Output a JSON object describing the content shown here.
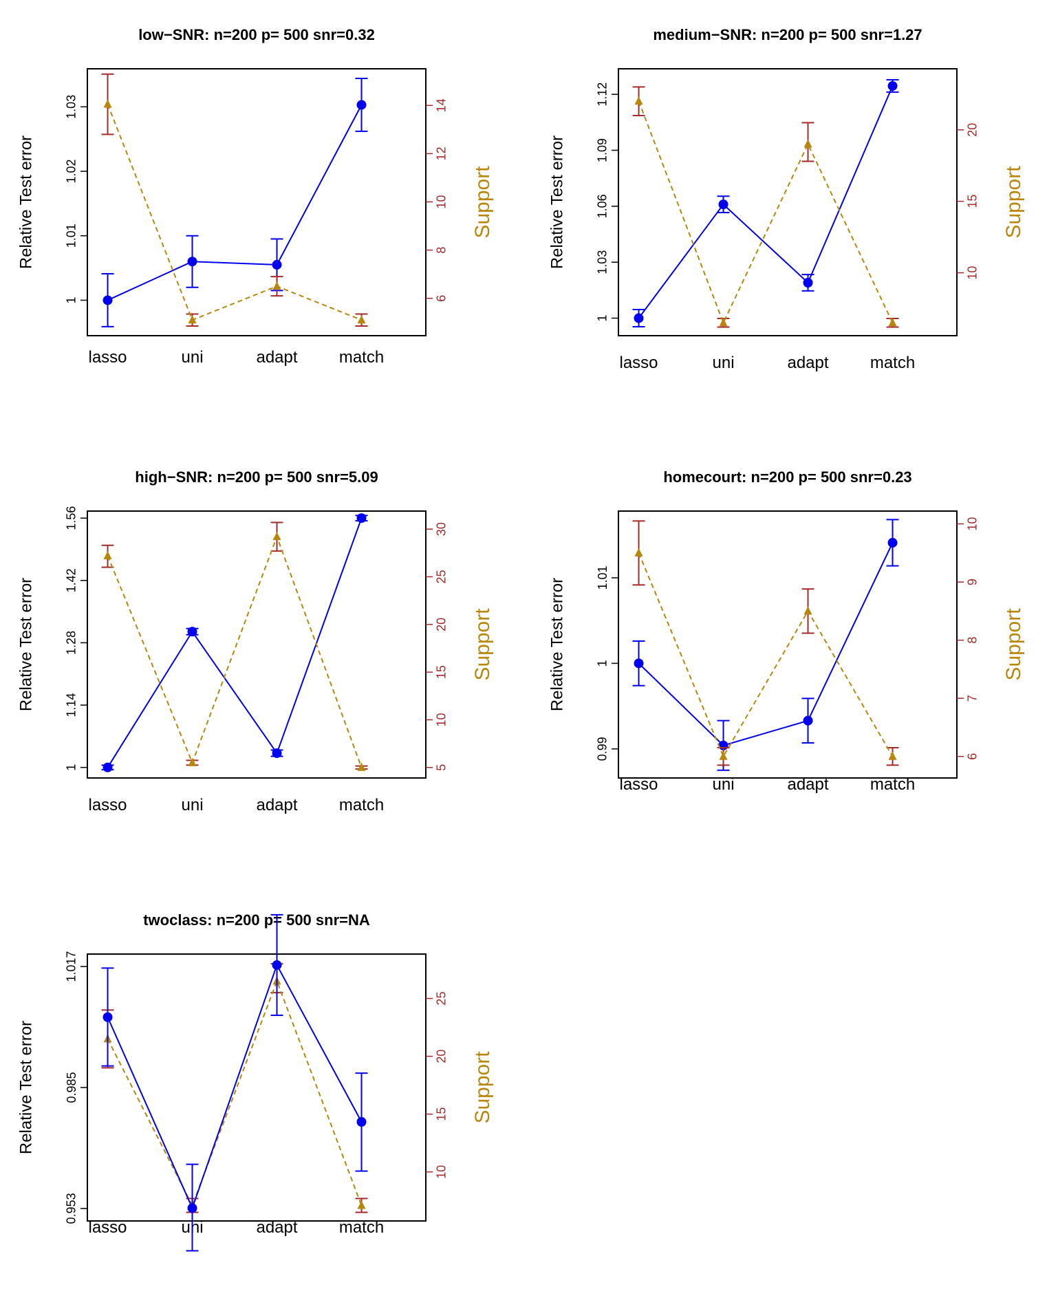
{
  "colors": {
    "error_series": "#0000ee",
    "support_series": "#b8860b",
    "support_axis": "#a52a2a",
    "support_label": "#b8860b",
    "frame": "#000000"
  },
  "chart_data": [
    {
      "type": "line",
      "title": "low−SNR: n=200 p= 500 snr=0.32",
      "xlabel": "",
      "ylabel": "Relative Test error",
      "y2label": "Support",
      "categories": [
        "lasso",
        "uni",
        "adapt",
        "match"
      ],
      "ylim": [
        0.9945,
        1.0359
      ],
      "yticks": [
        "1",
        "1.01",
        "1.02",
        "1.03"
      ],
      "y2lim": [
        4.45,
        15.52
      ],
      "y2ticks": [
        "6",
        "8",
        "10",
        "12",
        "14"
      ],
      "series": [
        {
          "name": "",
          "axis": "left",
          "marker": "circle",
          "line": "solid",
          "values": [
            1.0,
            1.006,
            1.0055,
            1.0303
          ],
          "lower": [
            0.9959,
            1.002,
            1.0015,
            1.0262
          ],
          "upper": [
            1.0041,
            1.01,
            1.0095,
            1.0344
          ]
        },
        {
          "name": "",
          "axis": "right",
          "marker": "triangle",
          "line": "dashed",
          "values": [
            14.05,
            5.1,
            6.5,
            5.1
          ],
          "lower": [
            12.8,
            4.85,
            6.1,
            4.85
          ],
          "upper": [
            15.3,
            5.35,
            6.9,
            5.35
          ]
        }
      ]
    },
    {
      "type": "line",
      "title": "medium−SNR: n=200 p= 500 snr=1.27",
      "xlabel": "",
      "ylabel": "Relative Test error",
      "y2label": "Support",
      "categories": [
        "lasso",
        "uni",
        "adapt",
        "match"
      ],
      "ylim": [
        0.9906,
        1.1337
      ],
      "yticks": [
        "1",
        "1.03",
        "1.06",
        "1.09",
        "1.12"
      ],
      "y2lim": [
        5.6,
        24.27
      ],
      "y2ticks": [
        "10",
        "15",
        "20"
      ],
      "series": [
        {
          "name": "",
          "axis": "left",
          "marker": "circle",
          "line": "solid",
          "values": [
            1.0,
            1.061,
            1.019,
            1.1245
          ],
          "lower": [
            0.9954,
            1.0566,
            1.0146,
            1.1212
          ],
          "upper": [
            1.0046,
            1.0654,
            1.0234,
            1.1278
          ]
        },
        {
          "name": "",
          "axis": "right",
          "marker": "triangle",
          "line": "dashed",
          "values": [
            22.0,
            6.5,
            19.0,
            6.5
          ],
          "lower": [
            21.0,
            6.2,
            17.8,
            6.2
          ],
          "upper": [
            23.0,
            6.8,
            20.5,
            6.8
          ]
        }
      ]
    },
    {
      "type": "line",
      "title": "high−SNR: n=200 p= 500 snr=5.09",
      "xlabel": "",
      "ylabel": "Relative Test error",
      "y2label": "Support",
      "categories": [
        "lasso",
        "uni",
        "adapt",
        "match"
      ],
      "ylim": [
        0.9763,
        1.5758
      ],
      "yticks": [
        "1",
        "1.14",
        "1.28",
        "1.42",
        "1.56"
      ],
      "y2lim": [
        3.9,
        31.89
      ],
      "y2ticks": [
        "5",
        "10",
        "15",
        "20",
        "25",
        "30"
      ],
      "series": [
        {
          "name": "",
          "axis": "left",
          "marker": "circle",
          "line": "solid",
          "values": [
            1.0,
            1.305,
            1.032,
            1.56
          ],
          "lower": [
            0.995,
            1.298,
            1.025,
            1.554
          ],
          "upper": [
            1.005,
            1.312,
            1.039,
            1.566
          ]
        },
        {
          "name": "",
          "axis": "right",
          "marker": "triangle",
          "line": "dashed",
          "values": [
            27.2,
            5.5,
            29.2,
            5.0
          ],
          "lower": [
            26.0,
            5.25,
            27.7,
            4.85
          ],
          "upper": [
            28.3,
            5.75,
            30.7,
            5.15
          ]
        }
      ]
    },
    {
      "type": "line",
      "title": "homecourt: n=200 p= 500 snr=0.23",
      "xlabel": "",
      "ylabel": "Relative Test error",
      "y2label": "Support",
      "categories": [
        "lasso",
        "uni",
        "adapt",
        "match"
      ],
      "ylim": [
        0.9866,
        1.0178
      ],
      "yticks": [
        "0.99",
        "1",
        "1.01"
      ],
      "y2lim": [
        5.63,
        10.22
      ],
      "y2ticks": [
        "6",
        "7",
        "8",
        "9",
        "10"
      ],
      "series": [
        {
          "name": "",
          "axis": "left",
          "marker": "circle",
          "line": "solid",
          "values": [
            1.0,
            0.9904,
            0.9933,
            1.0141
          ],
          "lower": [
            0.9974,
            0.9875,
            0.9907,
            1.0114
          ],
          "upper": [
            1.0026,
            0.9933,
            0.9959,
            1.0168
          ]
        },
        {
          "name": "",
          "axis": "right",
          "marker": "triangle",
          "line": "dashed",
          "values": [
            9.5,
            6.0,
            8.5,
            6.0
          ],
          "lower": [
            8.95,
            5.85,
            8.12,
            5.85
          ],
          "upper": [
            10.05,
            6.15,
            8.88,
            6.15
          ]
        }
      ]
    },
    {
      "type": "line",
      "title": "twoclass: n=200 p= 500 snr=NA",
      "xlabel": "",
      "ylabel": "Relative Test error",
      "y2label": "Support",
      "categories": [
        "lasso",
        "uni",
        "adapt",
        "match"
      ],
      "ylim": [
        0.9497,
        1.0203
      ],
      "yticks": [
        "0.953",
        "0.985",
        "1.017"
      ],
      "y2lim": [
        5.76,
        28.84
      ],
      "y2ticks": [
        "10",
        "15",
        "20",
        "25"
      ],
      "series": [
        {
          "name": "",
          "axis": "right",
          "marker": "triangle",
          "line": "dashed",
          "values": [
            21.5,
            7.1,
            26.5,
            7.1
          ],
          "lower": [
            19.0,
            6.5,
            25.5,
            6.5
          ],
          "upper": [
            24.0,
            7.7,
            28.0,
            7.7
          ]
        },
        {
          "name": "",
          "axis": "left",
          "marker": "circle",
          "line": "solid",
          "values": [
            1.0036,
            0.9531,
            1.0174,
            0.9759
          ],
          "lower": [
            0.9907,
            0.9418,
            1.0041,
            0.9629
          ],
          "upper": [
            1.0166,
            0.9647,
            1.0307,
            0.9888
          ]
        }
      ]
    }
  ]
}
